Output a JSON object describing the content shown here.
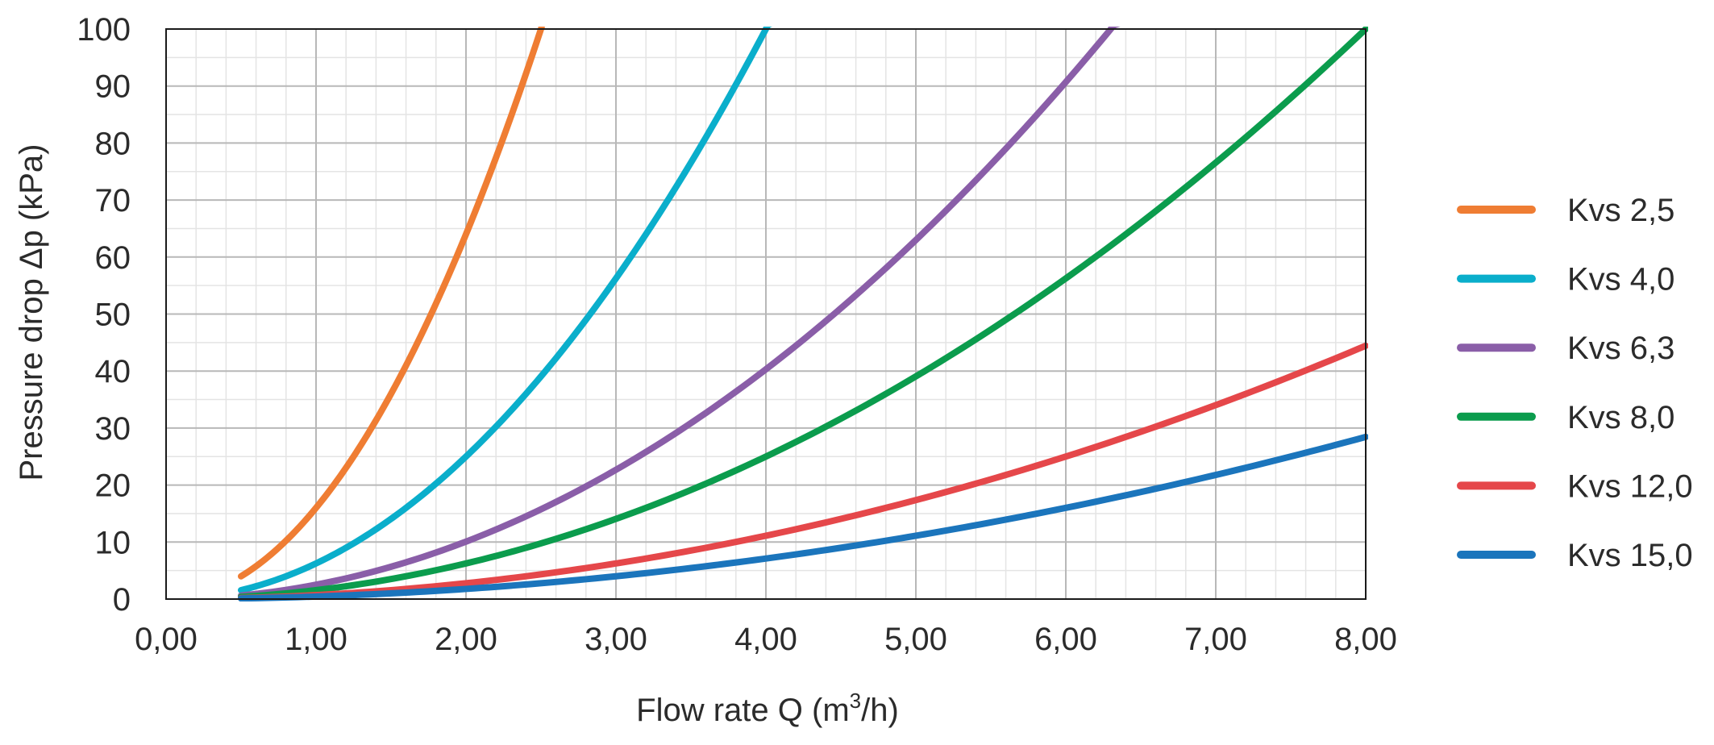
{
  "chart_data": {
    "type": "line",
    "title": "",
    "xlabel": {
      "prefix": "Flow rate Q (m",
      "sup": "3",
      "suffix": "/h)"
    },
    "ylabel": "Pressure drop Δp (kPa)",
    "xlim": [
      0,
      8
    ],
    "ylim": [
      0,
      100
    ],
    "x_ticks": [
      0,
      1,
      2,
      3,
      4,
      5,
      6,
      7,
      8
    ],
    "x_tick_labels": [
      "0,00",
      "1,00",
      "2,00",
      "3,00",
      "4,00",
      "5,00",
      "6,00",
      "7,00",
      "8,00"
    ],
    "y_ticks": [
      0,
      10,
      20,
      30,
      40,
      50,
      60,
      70,
      80,
      90,
      100
    ],
    "y_tick_labels": [
      "0",
      "10",
      "20",
      "30",
      "40",
      "50",
      "60",
      "70",
      "80",
      "90",
      "100"
    ],
    "x_minor_step": 0.2,
    "y_minor_step": 5,
    "grid": true,
    "legend_position": "right",
    "series": [
      {
        "name": "Kvs 2,5",
        "color": "#ef7d33",
        "kvs": 2.5,
        "x": [
          0.5,
          0.75,
          1.0,
          1.25,
          1.5,
          1.75,
          2.0,
          2.25,
          2.53
        ],
        "y": [
          4,
          9,
          16,
          25,
          36,
          49,
          64,
          81,
          100
        ]
      },
      {
        "name": "Kvs 4,0",
        "color": "#0aaecb",
        "kvs": 4.0,
        "x": [
          0.5,
          1.0,
          1.5,
          2.0,
          2.5,
          3.0,
          3.5,
          4.0,
          4.05
        ],
        "y": [
          1.6,
          6.3,
          14.1,
          25,
          39,
          56.3,
          76.6,
          100,
          100
        ]
      },
      {
        "name": "Kvs 6,3",
        "color": "#8a5ea8",
        "kvs": 6.3,
        "x": [
          0.5,
          1.0,
          2.0,
          3.0,
          4.0,
          5.0,
          6.0,
          6.35
        ],
        "y": [
          0.6,
          2.5,
          10,
          22.7,
          40.3,
          63,
          90.7,
          100
        ]
      },
      {
        "name": "Kvs 8,0",
        "color": "#0b9c4d",
        "kvs": 8.0,
        "x": [
          0.5,
          1.0,
          2.0,
          3.0,
          4.0,
          5.0,
          6.0,
          7.0,
          8.0
        ],
        "y": [
          0.4,
          1.6,
          6.3,
          14.1,
          25,
          39.1,
          56.3,
          76.6,
          100
        ]
      },
      {
        "name": "Kvs 12,0",
        "color": "#e5474a",
        "kvs": 12.0,
        "x": [
          0.5,
          1.0,
          2.0,
          3.0,
          4.0,
          5.0,
          6.0,
          7.0,
          8.0
        ],
        "y": [
          0.2,
          0.7,
          2.8,
          6.3,
          11.1,
          17.4,
          25,
          34,
          44.4
        ]
      },
      {
        "name": "Kvs 15,0",
        "color": "#1b75bc",
        "kvs": 15.0,
        "x": [
          0.5,
          1.0,
          2.0,
          3.0,
          4.0,
          5.0,
          6.0,
          7.0,
          8.0
        ],
        "y": [
          0.1,
          0.4,
          1.8,
          4,
          7.1,
          11.1,
          16,
          21.8,
          28.4
        ]
      }
    ]
  }
}
